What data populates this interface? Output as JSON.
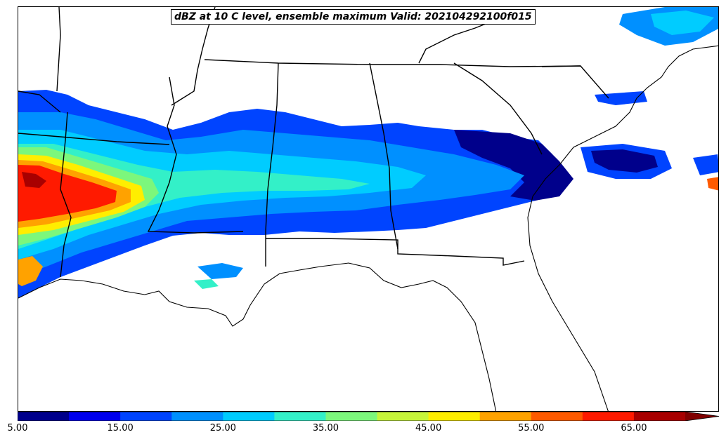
{
  "map": {
    "title": "dBZ at 10 C level, ensemble maximum Valid: 202104292100f015",
    "region": "Southeastern United States",
    "field": "radar reflectivity",
    "border_color": "#000000",
    "background_color": "#ffffff"
  },
  "colorbar": {
    "min": 5,
    "max": 70,
    "extend": "max",
    "tick_labels": [
      "5.00",
      "15.00",
      "25.00",
      "35.00",
      "45.00",
      "55.00",
      "65.00"
    ],
    "bins": [
      {
        "from": 5,
        "to": 10,
        "color": "#00008b"
      },
      {
        "from": 10,
        "to": 15,
        "color": "#0000ee"
      },
      {
        "from": 15,
        "to": 20,
        "color": "#0044ff"
      },
      {
        "from": 20,
        "to": 25,
        "color": "#0090ff"
      },
      {
        "from": 25,
        "to": 30,
        "color": "#00ccff"
      },
      {
        "from": 30,
        "to": 35,
        "color": "#33f0c8"
      },
      {
        "from": 35,
        "to": 40,
        "color": "#7cf77c"
      },
      {
        "from": 40,
        "to": 45,
        "color": "#c6f53a"
      },
      {
        "from": 45,
        "to": 50,
        "color": "#ffee00"
      },
      {
        "from": 50,
        "to": 55,
        "color": "#ffa200"
      },
      {
        "from": 55,
        "to": 60,
        "color": "#ff5a00"
      },
      {
        "from": 60,
        "to": 65,
        "color": "#ff1a00"
      },
      {
        "from": 65,
        "to": 70,
        "color": "#a80000"
      }
    ],
    "extend_color": "#800000"
  }
}
